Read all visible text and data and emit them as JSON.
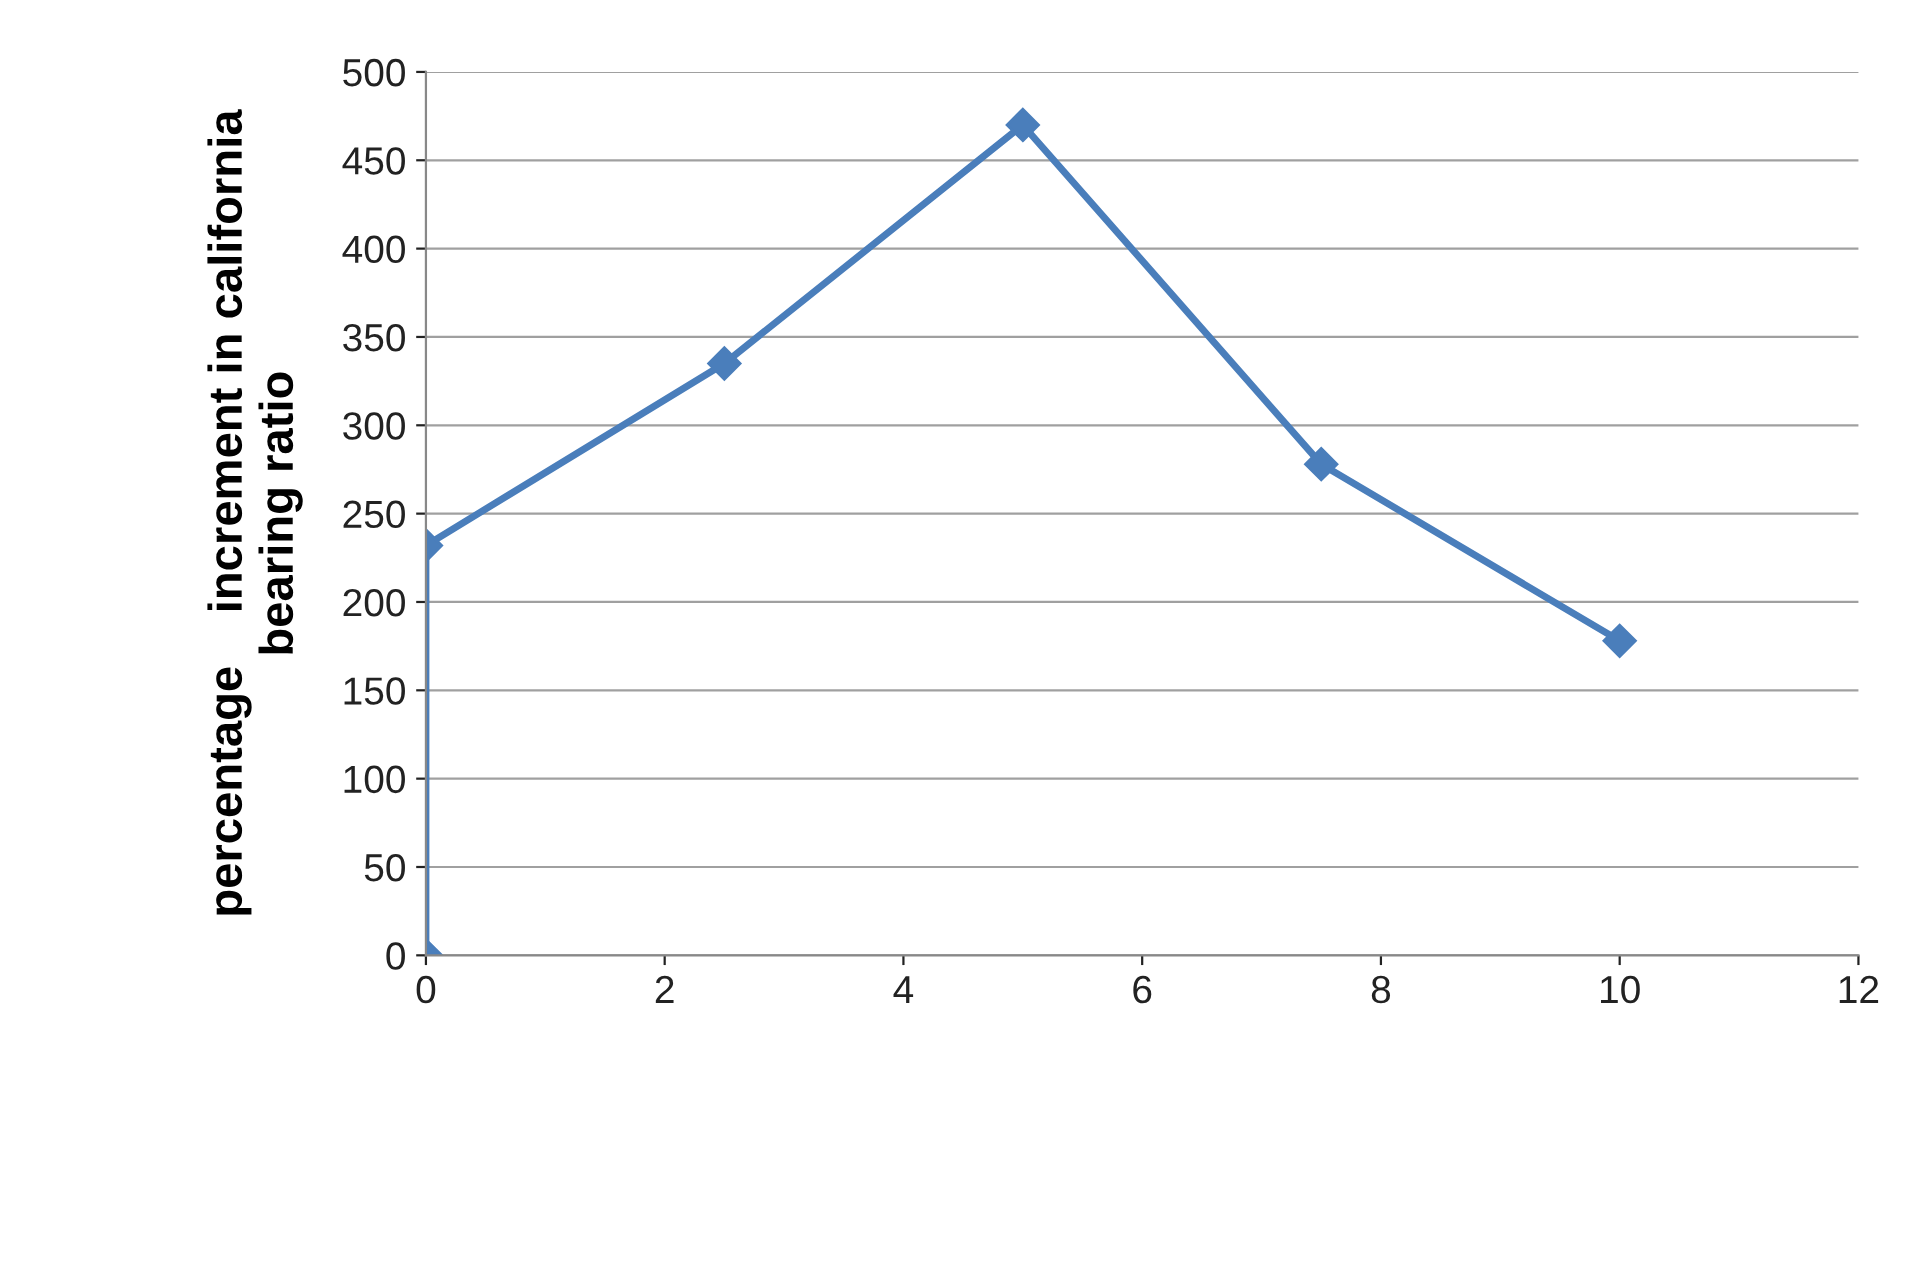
{
  "chart_data": {
    "type": "line",
    "ylabel": "percentage    increment in california\nbearing ratio",
    "x": [
      0,
      0,
      2.5,
      5,
      7.5,
      10
    ],
    "series": [
      {
        "color": "#4a7ebb",
        "values": [
          0,
          232,
          335,
          470,
          278,
          178
        ]
      }
    ],
    "xlim": [
      0,
      12
    ],
    "xticks": [
      0,
      2,
      4,
      6,
      8,
      10,
      12
    ],
    "ylim": [
      0,
      500
    ],
    "yticks": [
      0,
      50,
      100,
      150,
      200,
      250,
      300,
      350,
      400,
      450,
      500
    ],
    "grid": "y",
    "marker": "diamond",
    "line_style": "solid",
    "legend": false
  }
}
